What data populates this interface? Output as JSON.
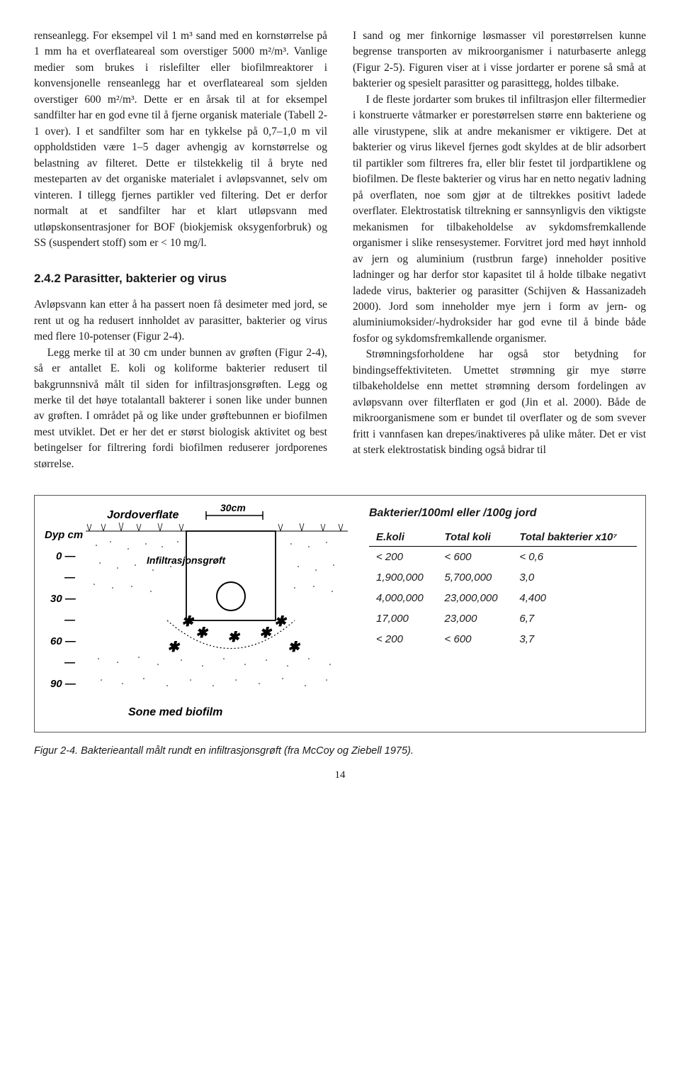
{
  "left_col": {
    "p1": "renseanlegg. For eksempel vil 1 m³ sand med en kornstørrelse på 1 mm ha et overflateareal som overstiger 5000 m²/m³. Vanlige medier som brukes i rislefilter eller biofilmreaktorer i konvensjonelle renseanlegg har et overflateareal som sjelden overstiger 600 m²/m³. Dette er en årsak til at for eksempel sandfilter har en god evne til å fjerne organisk materiale (Tabell 2-1 over). I et sandfilter som har en tykkelse på 0,7–1,0 m vil oppholdstiden være 1–5 dager avhengig av kornstørrelse og belastning av filteret. Dette er tilstekkelig til å bryte ned mesteparten av det organiske materialet i avløpsvannet, selv om vinteren. I tillegg fjernes partikler ved filtering. Det er derfor normalt at et sandfilter har et klart utløpsvann med utløpskonsentrasjoner for BOF (biokjemisk oksygenforbruk) og SS (suspendert stoff) som er < 10 mg/l.",
    "heading": "2.4.2  Parasitter, bakterier og virus",
    "p2": "Avløpsvann kan etter å ha passert noen få desimeter med jord, se rent ut og ha redusert innholdet av parasitter, bakterier og virus med flere 10-potenser (Figur 2-4).",
    "p3": "Legg merke til at 30 cm under bunnen av grøften (Figur 2-4), så er antallet E. koli og koliforme bakterier redusert til bakgrunnsnivå målt til siden for infiltrasjonsgrøften. Legg og merke til det høye totalantall bakterer i sonen like under bunnen av grøften. I området på og like under grøftebunnen er biofilmen mest utviklet. Det er her det er størst biologisk aktivitet og best betingelser for filtrering fordi biofilmen reduserer jordporenes størrelse."
  },
  "right_col": {
    "p1": "I sand og mer finkornige løsmasser vil porestørrelsen kunne begrense transporten av mikroorganismer i naturbaserte anlegg (Figur 2-5). Figuren viser at i visse jordarter er porene så små at bakterier og spesielt parasitter og parasittegg, holdes tilbake.",
    "p2": "I de fleste jordarter som brukes til infiltrasjon eller filtermedier i konstruerte våtmarker er porestørrelsen større enn bakteriene og alle virustypene, slik at andre mekanismer er viktigere. Det at bakterier og virus likevel fjernes godt skyldes at de blir adsorbert til partikler som filtreres fra, eller blir festet til jordpartiklene og biofilmen. De fleste bakterier og virus har en netto negativ ladning på overflaten, noe som gjør at de tiltrekkes positivt ladede overflater. Elektrostatisk tiltrekning er sannsynligvis den viktigste mekanismen for tilbakeholdelse av sykdomsfremkallende organismer i slike rensesystemer. Forvitret jord med høyt innhold av jern og aluminium (rustbrun farge) inneholder positive ladninger og har derfor stor kapasitet til å holde tilbake negativt ladede virus, bakterier og parasitter (Schijven & Hassanizadeh 2000). Jord som inneholder mye jern i form av jern- og aluminiumoksider/-hydroksider har god evne til å binde både fosfor og sykdomsfremkallende organismer.",
    "p3": "Strømningsforholdene har også stor betydning for bindingseffektiviteten. Umettet strømning gir mye større tilbakeholdelse enn mettet strømning dersom fordelingen av avløpsvann over filterflaten er god (Jin et al. 2000). Både de mikroorganismene som er bundet til overflater og de som svever fritt i vannfasen kan drepes/inaktiveres på ulike måter. Det er vist at sterk elektrostatisk binding også bidrar til"
  },
  "diagram": {
    "label_top": "Jordoverflate",
    "label_scale": "30cm",
    "label_trench": "Infiltrasjonsgrøft",
    "label_depth": "Dyp  cm",
    "ticks": [
      "0 —",
      "—",
      "30 —",
      "—",
      "60 —",
      "—",
      "90 —"
    ],
    "label_biofilm": "Sone med biofilm"
  },
  "table": {
    "header": "Bakterier/100ml eller /100g jord",
    "columns": [
      "E.koli",
      "Total koli",
      "Total bakterier x10⁷"
    ],
    "rows": [
      [
        "< 200",
        "< 600",
        "< 0,6"
      ],
      [
        "1,900,000",
        "5,700,000",
        "3,0"
      ],
      [
        "4,000,000",
        "23,000,000",
        "4,400"
      ],
      [
        "17,000",
        "23,000",
        "6,7"
      ],
      [
        "< 200",
        "< 600",
        "3,7"
      ]
    ]
  },
  "caption": "Figur 2-4. Bakterieantall målt rundt en infiltrasjonsgrøft (fra McCoy og Ziebell 1975).",
  "page_number": "14"
}
